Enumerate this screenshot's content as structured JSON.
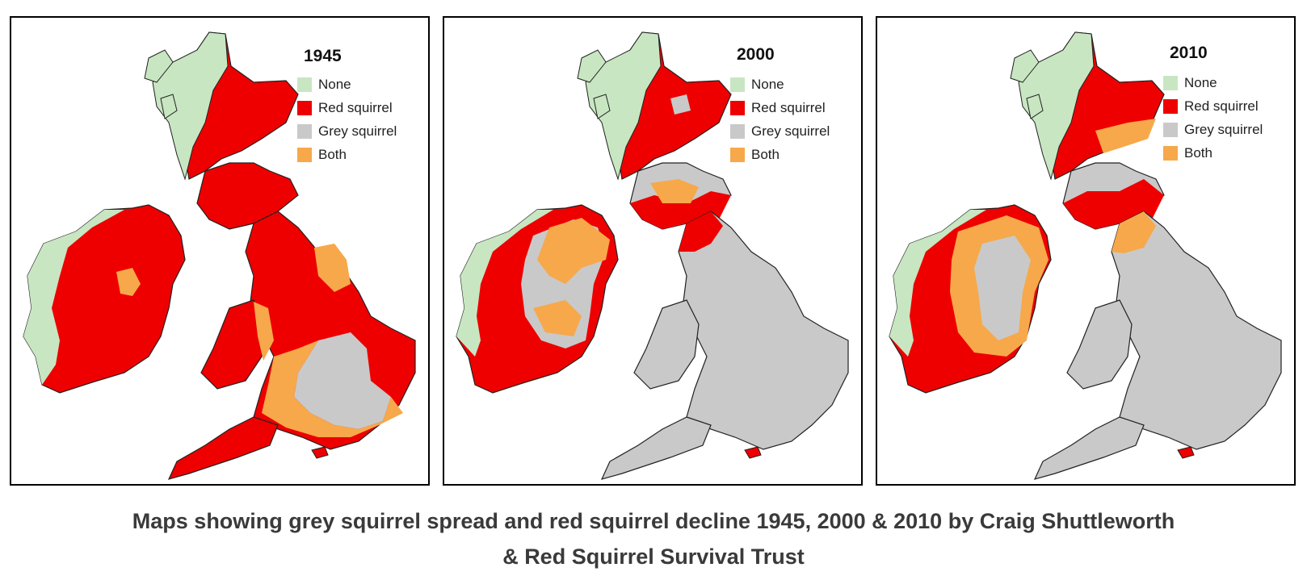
{
  "legend": {
    "none": {
      "label": "None",
      "color": "#c8e6c2"
    },
    "red": {
      "label": "Red squirrel",
      "color": "#ee0000"
    },
    "grey": {
      "label": "Grey squirrel",
      "color": "#c9c9c9"
    },
    "both": {
      "label": "Both",
      "color": "#f7a84a"
    }
  },
  "maps": [
    {
      "year": "1945"
    },
    {
      "year": "2000"
    },
    {
      "year": "2010"
    }
  ],
  "caption": {
    "line1": "Maps showing grey squirrel spread and red squirrel decline 1945, 2000 & 2010 by Craig Shuttleworth",
    "line2": "& Red Squirrel Survival Trust"
  }
}
